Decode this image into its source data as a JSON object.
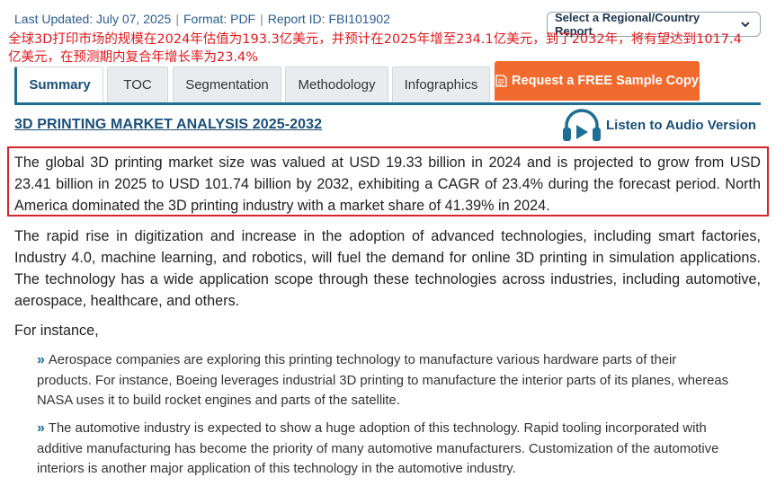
{
  "meta": {
    "last_updated": "Last Updated: July 07, 2025",
    "format": "Format: PDF",
    "report_id": "Report ID: FBI101902"
  },
  "region_select": {
    "value": "Select a Regional/Country Report"
  },
  "cn_note": "全球3D打印市场的规模在2024年估值为193.3亿美元，并预计在2025年增至234.1亿美元，到了2032年，将有望达到1017.4亿美元，在预测期内复合年增长率为23.4%",
  "tabs": [
    {
      "label": "Summary"
    },
    {
      "label": "TOC"
    },
    {
      "label": "Segmentation"
    },
    {
      "label": "Methodology"
    },
    {
      "label": "Infographics"
    }
  ],
  "cta": {
    "label": "Request a FREE Sample Copy"
  },
  "section_title": "3D PRINTING MARKET ANALYSIS 2025-2032",
  "audio": {
    "label": "Listen to Audio Version"
  },
  "paragraphs": {
    "highlight": "The global 3D printing market size was valued at USD 19.33 billion in 2024 and is projected to grow from USD 23.41 billion in 2025 to USD 101.74 billion by 2032, exhibiting a CAGR of 23.4% during the forecast period. North America dominated the 3D printing industry with a market share of 41.39% in 2024.",
    "intro": "The rapid rise in digitization and increase in the adoption of advanced technologies, including smart factories, Industry 4.0, machine learning, and robotics, will fuel the demand for online 3D printing in simulation applications. The technology has a wide application scope through these technologies across industries, including automotive, aerospace, healthcare, and others.",
    "for_instance": "For instance,"
  },
  "bullets": [
    {
      "text": "Aerospace companies are exploring this printing technology to manufacture various hardware parts of their products. For instance, Boeing leverages industrial 3D printing to manufacture the interior parts of its planes, whereas NASA uses it to build rocket engines and parts of the satellite."
    },
    {
      "text": "The automotive industry is expected to show a huge adoption of this technology. Rapid tooling incorporated with additive manufacturing has become the priority of many automotive manufacturers. Customization of the automotive interiors is another major application of this technology in the automotive industry."
    }
  ],
  "colors": {
    "accent": "#1f6f94",
    "cta": "#f26b2e",
    "highlight_border": "#d4252a",
    "note_text": "#e0191b"
  }
}
